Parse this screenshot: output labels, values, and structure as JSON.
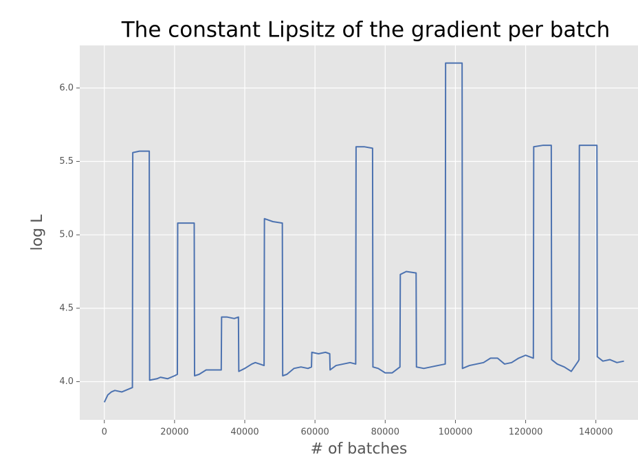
{
  "chart_data": {
    "type": "line",
    "title": "The constant Lipsitz of the gradient per batch",
    "x_label": "# of batches",
    "y_label": "log L",
    "xlim": [
      -7000,
      152000
    ],
    "ylim": [
      3.74,
      6.29
    ],
    "xticks": [
      0,
      20000,
      40000,
      60000,
      80000,
      100000,
      120000,
      140000
    ],
    "yticks": [
      {
        "value": 4,
        "label": "4.0"
      },
      4.5,
      {
        "value": 5,
        "label": "5.0"
      },
      5.5,
      {
        "value": 6,
        "label": "6.0"
      }
    ],
    "grid": true,
    "series": [
      {
        "color": "#4c72b0",
        "x": [
          0,
          1000,
          2000,
          3000,
          5000,
          7000,
          8000,
          8100,
          10000,
          12800,
          12900,
          15000,
          16000,
          18000,
          20000,
          20800,
          20900,
          23000,
          25600,
          25700,
          27000,
          29000,
          31000,
          33300,
          33400,
          35000,
          37000,
          38200,
          38300,
          40000,
          42000,
          43000,
          45500,
          45600,
          48000,
          50700,
          50800,
          52000,
          54000,
          56000,
          58000,
          59000,
          59100,
          61000,
          63000,
          64200,
          64300,
          66000,
          68000,
          70000,
          71600,
          71700,
          74000,
          76400,
          76500,
          78000,
          80000,
          82000,
          84200,
          84300,
          86000,
          88800,
          88900,
          91000,
          93000,
          95000,
          97100,
          97200,
          100000,
          101900,
          102000,
          104000,
          106000,
          108000,
          110000,
          112000,
          114000,
          116000,
          118000,
          120000,
          122200,
          122300,
          125000,
          127300,
          127400,
          129000,
          131000,
          133000,
          135000,
          135200,
          135300,
          138000,
          140300,
          140400,
          142000,
          144000,
          146000,
          148000
        ],
        "values": [
          3.86,
          3.91,
          3.93,
          3.94,
          3.93,
          3.95,
          3.96,
          5.56,
          5.57,
          5.57,
          4.01,
          4.02,
          4.03,
          4.02,
          4.04,
          4.05,
          5.08,
          5.08,
          5.08,
          4.04,
          4.05,
          4.08,
          4.08,
          4.08,
          4.44,
          4.44,
          4.43,
          4.44,
          4.07,
          4.09,
          4.12,
          4.13,
          4.11,
          5.11,
          5.09,
          5.08,
          4.04,
          4.05,
          4.09,
          4.1,
          4.09,
          4.1,
          4.2,
          4.19,
          4.2,
          4.19,
          4.08,
          4.11,
          4.12,
          4.13,
          4.12,
          5.6,
          5.6,
          5.59,
          4.1,
          4.09,
          4.06,
          4.06,
          4.1,
          4.73,
          4.75,
          4.74,
          4.1,
          4.09,
          4.1,
          4.11,
          4.12,
          6.17,
          6.17,
          6.17,
          4.09,
          4.11,
          4.12,
          4.13,
          4.16,
          4.16,
          4.12,
          4.13,
          4.16,
          4.18,
          4.16,
          5.6,
          5.61,
          5.61,
          4.15,
          4.12,
          4.1,
          4.07,
          4.14,
          4.15,
          5.61,
          5.61,
          5.61,
          4.17,
          4.14,
          4.15,
          4.13,
          4.14
        ]
      }
    ]
  }
}
